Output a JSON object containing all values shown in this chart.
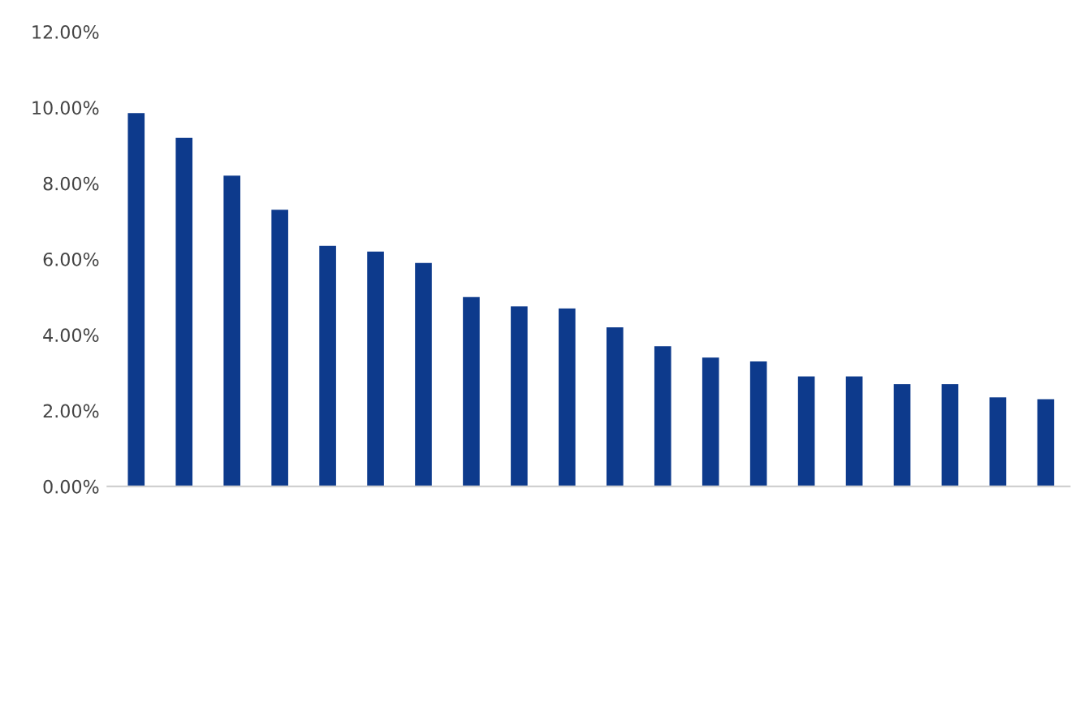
{
  "chart_data": {
    "type": "bar",
    "categories": [
      null,
      null,
      null,
      null,
      null,
      null,
      null,
      null,
      null,
      null,
      null,
      null,
      null,
      null,
      null,
      null,
      null,
      null,
      null,
      null
    ],
    "values": [
      9.85,
      9.2,
      8.2,
      7.3,
      6.35,
      6.2,
      5.9,
      5.0,
      4.75,
      4.7,
      4.2,
      3.7,
      3.4,
      3.3,
      2.9,
      2.9,
      2.7,
      2.7,
      2.35,
      2.3
    ],
    "color": "#0d3a8c",
    "ylim": [
      0,
      12
    ],
    "yticks": [
      {
        "value": 0,
        "label": "0.00%"
      },
      {
        "value": 2,
        "label": "2.00%"
      },
      {
        "value": 4,
        "label": "4.00%"
      },
      {
        "value": 6,
        "label": "6.00%"
      },
      {
        "value": 8,
        "label": "8.00%"
      },
      {
        "value": 10,
        "label": "10.00%"
      },
      {
        "value": 12,
        "label": "12.00%"
      }
    ],
    "grid": false
  }
}
